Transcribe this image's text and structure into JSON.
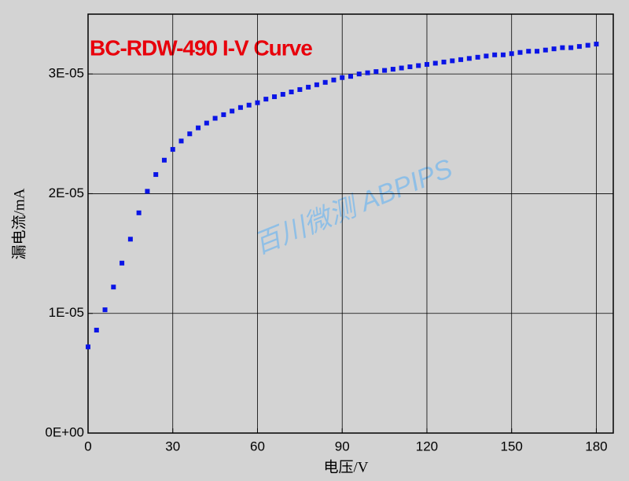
{
  "chart_data": {
    "type": "scatter",
    "title": "BC-RDW-490 I-V Curve",
    "watermark": "百川微测 ABPIPS",
    "x_label": "电压/V",
    "y_label": "漏电流/mA",
    "x": [
      0,
      3,
      6,
      9,
      12,
      15,
      18,
      21,
      24,
      27,
      30,
      33,
      36,
      39,
      42,
      45,
      48,
      51,
      54,
      57,
      60,
      63,
      66,
      69,
      72,
      75,
      78,
      81,
      84,
      87,
      90,
      93,
      96,
      99,
      102,
      105,
      108,
      111,
      114,
      117,
      120,
      123,
      126,
      129,
      132,
      135,
      138,
      141,
      144,
      147,
      150,
      153,
      156,
      159,
      162,
      165,
      168,
      171,
      174,
      177,
      180
    ],
    "series": [
      {
        "color": "#0a14e6",
        "values": [
          7.2e-06,
          8.6e-06,
          1.03e-05,
          1.22e-05,
          1.42e-05,
          1.62e-05,
          1.84e-05,
          2.02e-05,
          2.16e-05,
          2.28e-05,
          2.37e-05,
          2.44e-05,
          2.5e-05,
          2.55e-05,
          2.59e-05,
          2.63e-05,
          2.66e-05,
          2.69e-05,
          2.72e-05,
          2.74e-05,
          2.76e-05,
          2.79e-05,
          2.81e-05,
          2.83e-05,
          2.85e-05,
          2.87e-05,
          2.89e-05,
          2.91e-05,
          2.93e-05,
          2.95e-05,
          2.97e-05,
          2.98e-05,
          3e-05,
          3.01e-05,
          3.02e-05,
          3.03e-05,
          3.04e-05,
          3.05e-05,
          3.06e-05,
          3.07e-05,
          3.08e-05,
          3.09e-05,
          3.1e-05,
          3.11e-05,
          3.12e-05,
          3.13e-05,
          3.14e-05,
          3.15e-05,
          3.16e-05,
          3.16e-05,
          3.17e-05,
          3.18e-05,
          3.19e-05,
          3.19e-05,
          3.2e-05,
          3.21e-05,
          3.22e-05,
          3.22e-05,
          3.23e-05,
          3.24e-05,
          3.25e-05
        ]
      }
    ],
    "xlim": [
      0,
      186
    ],
    "ylim": [
      0,
      3.5e-05
    ],
    "xticks": [
      0,
      30,
      60,
      90,
      120,
      150,
      180
    ],
    "yticks": [
      {
        "value": 0,
        "label": "0E+00"
      },
      {
        "value": 1e-05,
        "label": "1E-05"
      },
      {
        "value": 2e-05,
        "label": "2E-05"
      },
      {
        "value": 3e-05,
        "label": "3E-05"
      }
    ],
    "grid": true
  }
}
